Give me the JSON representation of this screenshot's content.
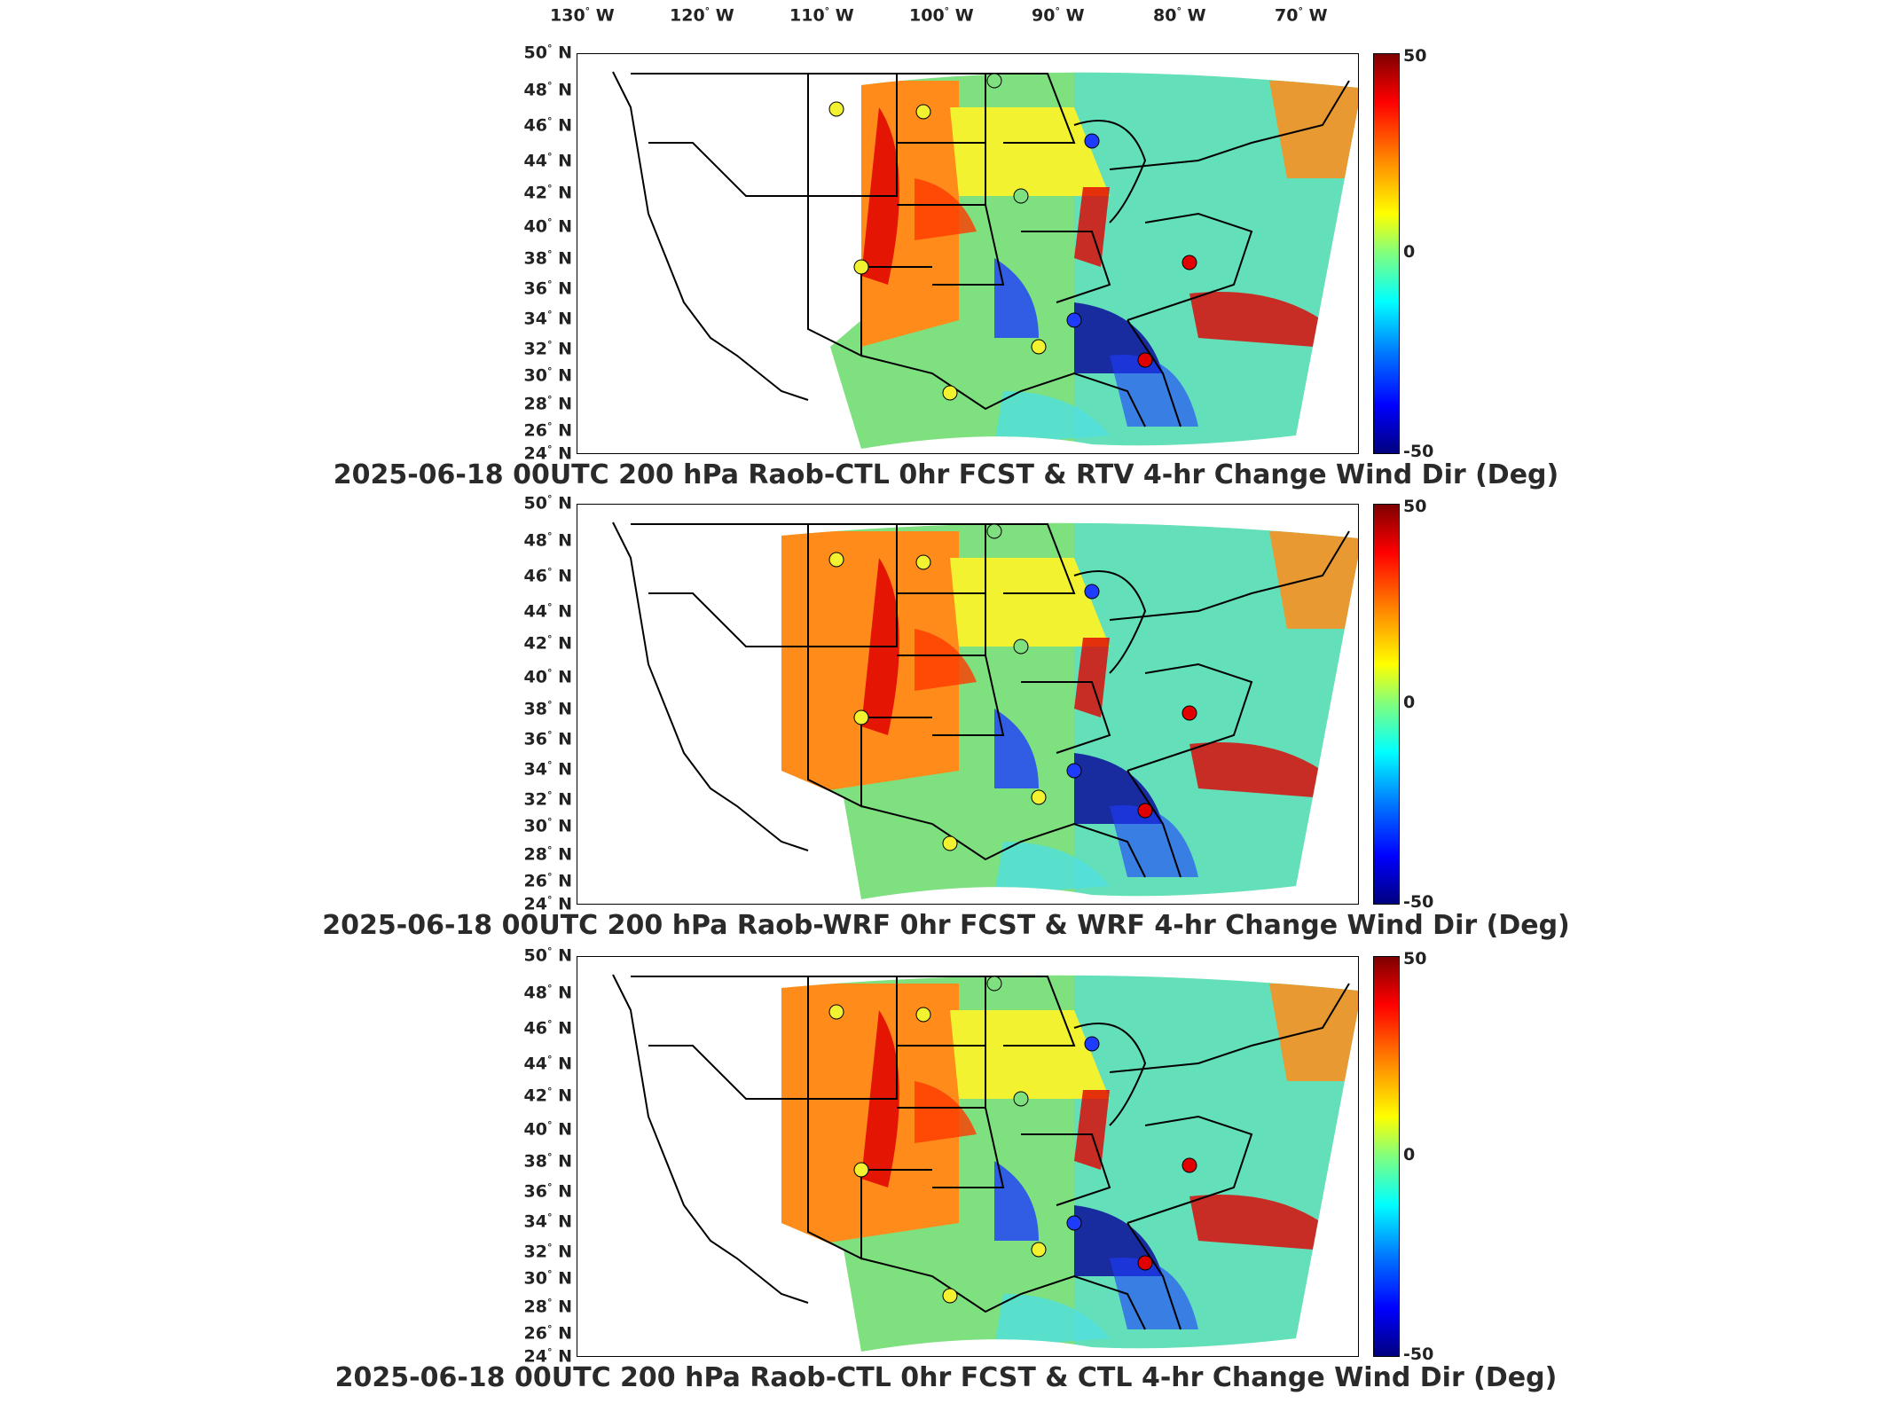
{
  "lon_ticks": [
    "130",
    "120",
    "110",
    "100",
    "90",
    "80",
    "70"
  ],
  "lon_suffix": "W",
  "lat_ticks": [
    "50",
    "48",
    "46",
    "44",
    "42",
    "40",
    "38",
    "36",
    "34",
    "32",
    "30",
    "28",
    "26",
    "24"
  ],
  "lat_suffix": "N",
  "colorbar": {
    "max": "50",
    "mid": "0",
    "min": "-50"
  },
  "panels": [
    {
      "title": "2025-06-18 00UTC 200 hPa Raob-CTL 0hr FCST & RTV 4-hr Change Wind Dir (Deg)"
    },
    {
      "title": "2025-06-18 00UTC 200 hPa Raob-WRF 0hr FCST & WRF 4-hr Change Wind Dir (Deg)"
    },
    {
      "title": "2025-06-18 00UTC 200 hPa Raob-CTL 0hr FCST & CTL 4-hr Change Wind Dir (Deg)"
    }
  ],
  "colors": {
    "red": "#e00000",
    "orange": "#ff8c1a",
    "yellow": "#f2f230",
    "green": "#7fe07f",
    "cyan": "#50e0e0",
    "blue": "#1e3cff",
    "navy": "#0a0a9a"
  }
}
